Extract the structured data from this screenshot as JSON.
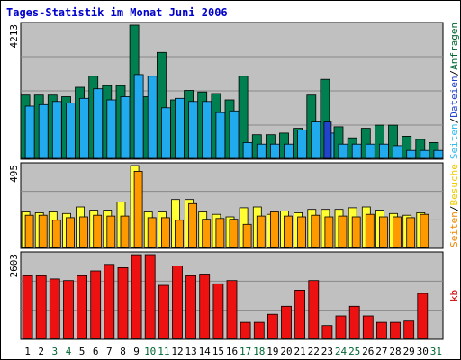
{
  "chart_data": {
    "type": "bar",
    "title": "Tages-Statistik im Monat Juni 2006",
    "categories": [
      "1",
      "2",
      "3",
      "4",
      "5",
      "6",
      "7",
      "8",
      "9",
      "10",
      "11",
      "12",
      "13",
      "14",
      "15",
      "16",
      "17",
      "18",
      "19",
      "20",
      "21",
      "22",
      "23",
      "24",
      "25",
      "26",
      "27",
      "28",
      "29",
      "30",
      "31"
    ],
    "weekend_days": [
      "3",
      "4",
      "10",
      "11",
      "17",
      "18",
      "24",
      "25",
      "31"
    ],
    "grid": true,
    "colors": {
      "border": "#000000",
      "plot_bg": "#c0c0c0",
      "grid": "#888888",
      "title": "#0000cc",
      "weekday_label": "#000000",
      "weekend_label": "#006633"
    },
    "panels": [
      {
        "name": "hits",
        "ymax": 4213,
        "ymax_label": "4213",
        "right_labels": [
          {
            "text": "Seiten",
            "color": "#33bbee"
          },
          {
            "text": "/",
            "color": "#000000"
          },
          {
            "text": "Dateien",
            "color": "#2244cc"
          },
          {
            "text": "/",
            "color": "#000000"
          },
          {
            "text": "Anfragen",
            "color": "#006633"
          }
        ],
        "series": [
          {
            "name": "Anfragen",
            "color": "#008050",
            "values": [
              2000,
              2000,
              2000,
              1950,
              2250,
              2600,
              2300,
              2300,
              4213,
              1950,
              3350,
              1850,
              2150,
              2100,
              2050,
              1850,
              2600,
              750,
              750,
              800,
              950,
              2000,
              2500,
              1000,
              650,
              950,
              1050,
              1050,
              700,
              600,
              500
            ]
          },
          {
            "name": "Dateien",
            "color": "#2244cc",
            "values": [
              null,
              null,
              null,
              null,
              null,
              null,
              null,
              null,
              null,
              null,
              null,
              null,
              null,
              null,
              null,
              null,
              null,
              null,
              null,
              null,
              null,
              null,
              1150,
              null,
              null,
              null,
              null,
              null,
              null,
              null,
              null
            ]
          },
          {
            "name": "Seiten",
            "color": "#22aaee",
            "values": [
              1650,
              1700,
              1800,
              1750,
              1900,
              2200,
              1850,
              1950,
              2650,
              2600,
              1600,
              1900,
              1800,
              1800,
              1450,
              1500,
              500,
              450,
              450,
              450,
              900,
              1150,
              800,
              450,
              450,
              450,
              450,
              400,
              250,
              250,
              250
            ]
          }
        ]
      },
      {
        "name": "visits",
        "ymax": 495,
        "ymax_label": "495",
        "right_labels": [
          {
            "text": "Seiten",
            "color": "#ee8800"
          },
          {
            "text": "/",
            "color": "#000000"
          },
          {
            "text": "Besuche",
            "color": "#eecc00"
          }
        ],
        "series": [
          {
            "name": "Besuche",
            "color": "#ffff33",
            "values": [
              215,
              210,
              215,
              205,
              245,
              225,
              225,
              275,
              510,
              215,
              215,
              290,
              290,
              215,
              200,
              185,
              240,
              245,
              200,
              220,
              210,
              230,
              230,
              230,
              240,
              245,
              225,
              205,
              195,
              210,
              null
            ]
          },
          {
            "name": "Seiten",
            "color": "#ff9900",
            "values": [
              195,
              195,
              165,
              180,
              185,
              195,
              190,
              190,
              460,
              180,
              180,
              165,
              265,
              170,
              175,
              170,
              140,
              190,
              215,
              190,
              185,
              195,
              185,
              190,
              185,
              200,
              185,
              185,
              180,
              200,
              null
            ]
          }
        ]
      },
      {
        "name": "kb",
        "ymax": 2603,
        "ymax_label": "2603",
        "right_labels": [
          {
            "text": "kb",
            "color": "#cc0000"
          }
        ],
        "series": [
          {
            "name": "kb",
            "color": "#ee1111",
            "values": [
              1950,
              1950,
              1850,
              1800,
              1950,
              2100,
              2300,
              2200,
              2600,
              2620,
              1650,
              2250,
              1950,
              2000,
              1700,
              1800,
              500,
              500,
              750,
              1000,
              1500,
              1800,
              400,
              700,
              1000,
              700,
              500,
              500,
              540,
              1400,
              null
            ]
          }
        ]
      }
    ]
  }
}
